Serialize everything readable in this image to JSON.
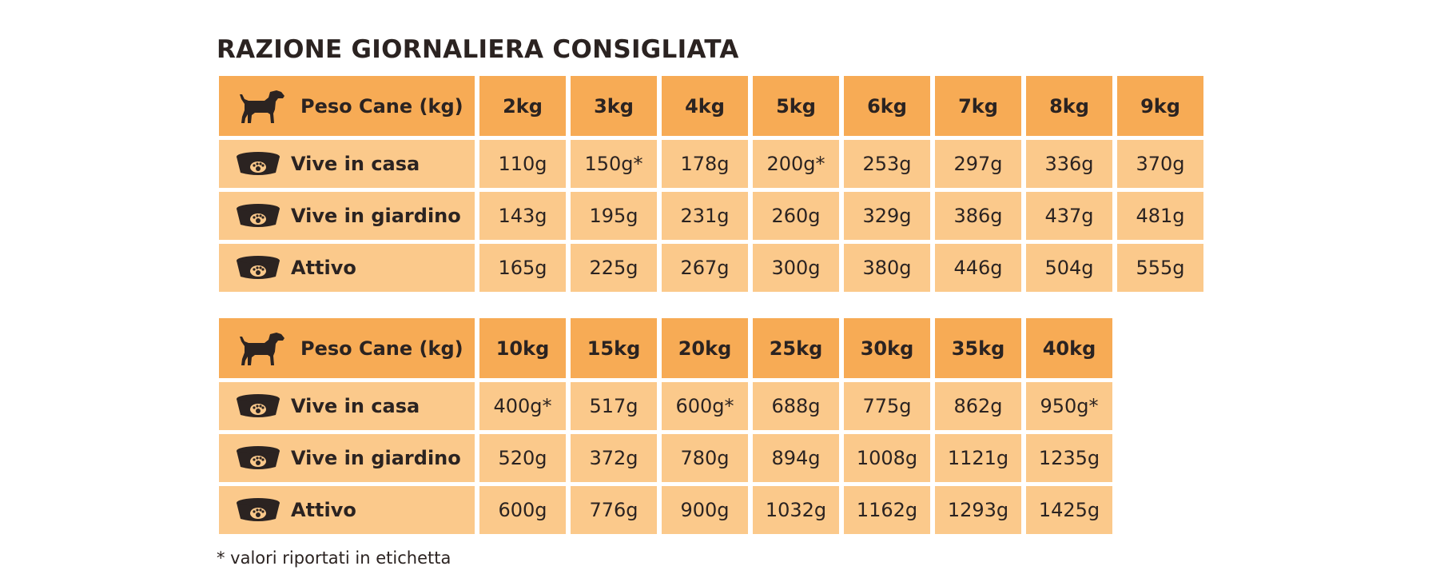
{
  "title": "RAZIONE GIORNALIERA CONSIGLIATA",
  "tables": [
    {
      "header": {
        "label": "Peso Cane (kg)",
        "columns": [
          "2kg",
          "3kg",
          "4kg",
          "5kg",
          "6kg",
          "7kg",
          "8kg",
          "9kg"
        ]
      },
      "rows": [
        {
          "label": "Vive in casa",
          "values": [
            "110g",
            "150g*",
            "178g",
            "200g*",
            "253g",
            "297g",
            "336g",
            "370g"
          ]
        },
        {
          "label": "Vive in giardino",
          "values": [
            "143g",
            "195g",
            "231g",
            "260g",
            "329g",
            "386g",
            "437g",
            "481g"
          ]
        },
        {
          "label": "Attivo",
          "values": [
            "165g",
            "225g",
            "267g",
            "300g",
            "380g",
            "446g",
            "504g",
            "555g"
          ]
        }
      ]
    },
    {
      "header": {
        "label": "Peso Cane (kg)",
        "columns": [
          "10kg",
          "15kg",
          "20kg",
          "25kg",
          "30kg",
          "35kg",
          "40kg"
        ]
      },
      "rows": [
        {
          "label": "Vive in casa",
          "values": [
            "400g*",
            "517g",
            "600g*",
            "688g",
            "775g",
            "862g",
            "950g*"
          ]
        },
        {
          "label": "Vive in giardino",
          "values": [
            "520g",
            "372g",
            "780g",
            "894g",
            "1008g",
            "1121g",
            "1235g"
          ]
        },
        {
          "label": "Attivo",
          "values": [
            "600g",
            "776g",
            "900g",
            "1032g",
            "1162g",
            "1293g",
            "1425g"
          ]
        }
      ]
    }
  ],
  "footnote": "* valori riportati in etichetta"
}
